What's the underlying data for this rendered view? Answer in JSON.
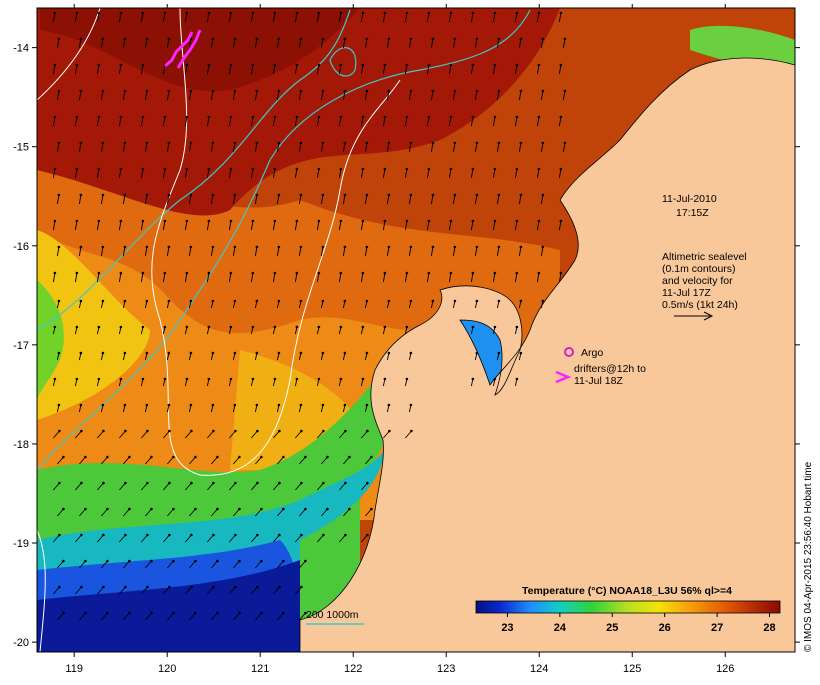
{
  "map": {
    "lon_range": [
      118.6,
      126.75
    ],
    "lat_range": [
      -20.1,
      -13.6
    ],
    "lon_ticks": [
      119,
      120,
      121,
      122,
      123,
      124,
      125,
      126
    ],
    "lat_ticks": [
      -14,
      -15,
      -16,
      -17,
      -18,
      -19,
      -20
    ],
    "date_label_line1": "11-Jul-2010",
    "date_label_line2": "17:15Z",
    "altimetry_label_lines": [
      "Altimetric sealevel",
      "(0.1m contours)",
      "and velocity for",
      "11-Jul 17Z",
      "0.5m/s (1kt 24h)"
    ],
    "argo_label": "Argo",
    "drifter_label_lines": [
      "drifters@12h to",
      "11-Jul 18Z"
    ],
    "depth_legend_label": "200  1000m",
    "credit": "© IMOS 04-Apr-2015 23:56:40 Hobart time",
    "colors": {
      "land": "#f9c89a",
      "contour": "#ffffff",
      "isobath": "#3fc8c8",
      "argo": "#d021d0",
      "drifter": "#ff22ff"
    }
  },
  "colorbar": {
    "title": "Temperature (°C) NOAA18_L3U 56% ql>=4",
    "ticks": [
      "23",
      "24",
      "25",
      "26",
      "27",
      "28"
    ],
    "min": 22.4,
    "max": 28.2
  }
}
